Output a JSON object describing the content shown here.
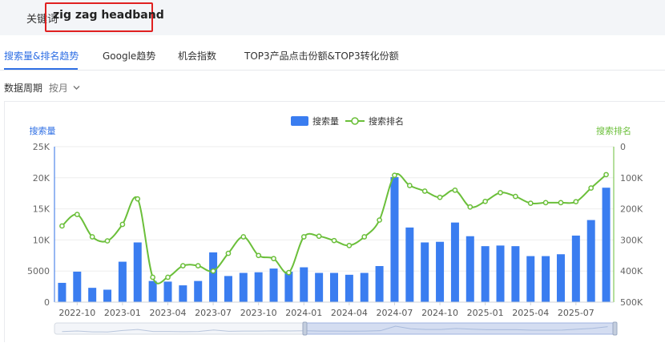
{
  "keyword": {
    "label": "关键词",
    "value": "zig zag headband"
  },
  "tabs": [
    {
      "label": "搜索量&排名趋势",
      "active": true
    },
    {
      "label": "Google趋势",
      "active": false
    },
    {
      "label": "机会指数",
      "active": false
    },
    {
      "label": "TOP3产品点击份额&TOP3转化份额",
      "active": false
    }
  ],
  "period": {
    "label": "数据周期",
    "value": "按月",
    "icon": "chevron-down-icon"
  },
  "colors": {
    "accent": "#2f6fe4",
    "bar": "#3a7df0",
    "line": "#6bbf3a",
    "keyword_border": "#e02020"
  },
  "chart_data": {
    "type": "bar+line",
    "legend": [
      {
        "name": "搜索量",
        "kind": "bar"
      },
      {
        "name": "搜索排名",
        "kind": "line"
      }
    ],
    "legend_position": "top-center",
    "ylabel_left": "搜索量",
    "ylabel_right": "搜索排名",
    "yticks_left": [
      "0",
      "5000",
      "10K",
      "15K",
      "20K",
      "25K"
    ],
    "yticks_right": [
      "0",
      "100K",
      "200K",
      "300K",
      "400K",
      "500K"
    ],
    "ylim_left": [
      0,
      25000
    ],
    "ylim_right_inverted": [
      0,
      500000
    ],
    "xtick_labels": [
      "2022-10",
      "2023-01",
      "2023-04",
      "2023-07",
      "2023-10",
      "2024-01",
      "2024-04",
      "2024-07",
      "2024-10",
      "2025-01",
      "2025-04",
      "2025-07"
    ],
    "categories": [
      "2022-09",
      "2022-10",
      "2022-11",
      "2022-12",
      "2023-01",
      "2023-02",
      "2023-03",
      "2023-04",
      "2023-05",
      "2023-06",
      "2023-07",
      "2023-08",
      "2023-09",
      "2023-10",
      "2023-11",
      "2023-12",
      "2024-01",
      "2024-02",
      "2024-03",
      "2024-04",
      "2024-05",
      "2024-06",
      "2024-07",
      "2024-08",
      "2024-09",
      "2024-10",
      "2024-11",
      "2024-12",
      "2025-01",
      "2025-02",
      "2025-03",
      "2025-04",
      "2025-05",
      "2025-06",
      "2025-07",
      "2025-08",
      "2025-09"
    ],
    "series": [
      {
        "name": "搜索量",
        "kind": "bar",
        "axis": "left",
        "values": [
          3100,
          4900,
          2300,
          2000,
          6500,
          9600,
          3400,
          3300,
          2700,
          3400,
          8000,
          4200,
          4700,
          4800,
          5400,
          4900,
          5600,
          4700,
          4700,
          4400,
          4700,
          5800,
          20100,
          12000,
          9600,
          9700,
          12800,
          10600,
          9000,
          9100,
          9000,
          7400,
          7400,
          7700,
          10700,
          13200,
          18400
        ]
      },
      {
        "name": "搜索排名",
        "kind": "line",
        "axis": "right",
        "values": [
          255000,
          218000,
          290000,
          303000,
          250000,
          168000,
          420000,
          420000,
          383000,
          383000,
          400000,
          343000,
          290000,
          350000,
          360000,
          405000,
          290000,
          288000,
          302000,
          318000,
          290000,
          236000,
          92000,
          125000,
          143000,
          163000,
          140000,
          194000,
          176000,
          148000,
          160000,
          182000,
          180000,
          180000,
          177000,
          133000,
          90000
        ]
      }
    ]
  }
}
